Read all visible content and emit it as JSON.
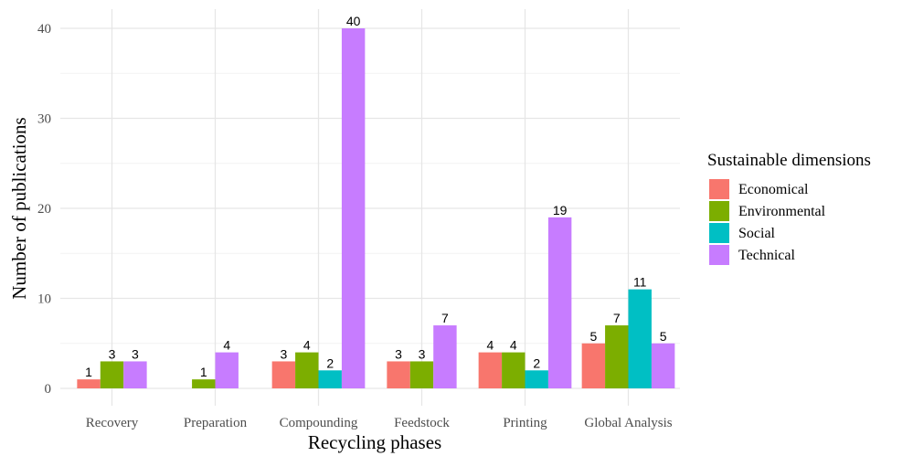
{
  "chart_data": {
    "type": "bar",
    "xlabel": "Recycling phases",
    "ylabel": "Number of publications",
    "ylim": [
      0,
      41.5
    ],
    "yticks": [
      0,
      10,
      20,
      30,
      40
    ],
    "grid": true,
    "legend_position": "right",
    "legend_title": "Sustainable dimensions",
    "categories": [
      "Recovery",
      "Preparation",
      "Compounding",
      "Feedstock",
      "Printing",
      "Global Analysis"
    ],
    "series": [
      {
        "name": "Economical",
        "color": "#F8766D",
        "values": [
          1,
          null,
          3,
          3,
          4,
          5
        ]
      },
      {
        "name": "Environmental",
        "color": "#7CAE00",
        "values": [
          3,
          1,
          4,
          3,
          4,
          7
        ]
      },
      {
        "name": "Social",
        "color": "#00BFC4",
        "values": [
          null,
          null,
          2,
          null,
          2,
          11
        ]
      },
      {
        "name": "Technical",
        "color": "#C77CFF",
        "values": [
          3,
          4,
          40,
          7,
          19,
          5
        ]
      }
    ]
  }
}
